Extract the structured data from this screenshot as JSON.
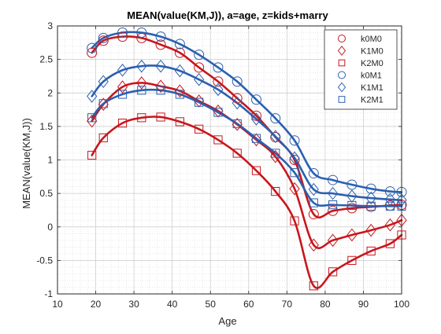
{
  "chart_data": {
    "type": "line",
    "title": "MEAN(value(KM,J)), a=age, z=kids+marry",
    "xlabel": "Age",
    "ylabel": "MEAN(value(KM,J))",
    "xlim": [
      10,
      100
    ],
    "ylim": [
      -1,
      3
    ],
    "xticks": [
      "10",
      "20",
      "30",
      "40",
      "50",
      "60",
      "70",
      "80",
      "90",
      "100"
    ],
    "yticks": [
      "-1",
      "-0.5",
      "0",
      "0.5",
      "1",
      "1.5",
      "2",
      "2.5",
      "3"
    ],
    "grid": true,
    "minor_grid": true,
    "legend_position": "top-right",
    "marker_x": [
      19,
      22,
      27,
      32,
      37,
      42,
      47,
      52,
      57,
      62,
      67,
      72,
      77,
      82,
      87,
      92,
      97,
      100
    ],
    "colors": {
      "red": "#c8161d",
      "blue": "#2a60b0"
    },
    "series": [
      {
        "name": "k0M0",
        "color": "#c8161d",
        "marker": "circle",
        "values": [
          2.6,
          2.78,
          2.84,
          2.82,
          2.72,
          2.6,
          2.38,
          2.17,
          1.92,
          1.66,
          1.34,
          1.0,
          0.19,
          0.24,
          0.28,
          0.3,
          0.32,
          0.33
        ]
      },
      {
        "name": "K1M0",
        "color": "#c8161d",
        "marker": "diamond",
        "values": [
          1.58,
          1.83,
          2.09,
          2.15,
          2.1,
          2.03,
          1.88,
          1.73,
          1.53,
          1.3,
          1.05,
          0.57,
          -0.27,
          -0.2,
          -0.12,
          -0.05,
          0.03,
          0.1
        ]
      },
      {
        "name": "K2M0",
        "color": "#c8161d",
        "marker": "square",
        "values": [
          1.07,
          1.33,
          1.55,
          1.63,
          1.64,
          1.57,
          1.46,
          1.3,
          1.1,
          0.84,
          0.53,
          0.09,
          -0.88,
          -0.67,
          -0.5,
          -0.36,
          -0.25,
          -0.12
        ]
      },
      {
        "name": "k0M1",
        "color": "#2a60b0",
        "marker": "circle",
        "values": [
          2.67,
          2.82,
          2.9,
          2.9,
          2.84,
          2.73,
          2.57,
          2.38,
          2.17,
          1.9,
          1.62,
          1.29,
          0.8,
          0.7,
          0.63,
          0.57,
          0.53,
          0.52
        ]
      },
      {
        "name": "K1M1",
        "color": "#2a60b0",
        "marker": "diamond",
        "values": [
          1.95,
          2.17,
          2.34,
          2.4,
          2.4,
          2.33,
          2.2,
          2.05,
          1.85,
          1.61,
          1.35,
          1.03,
          0.56,
          0.5,
          0.46,
          0.43,
          0.41,
          0.4
        ]
      },
      {
        "name": "K2M1",
        "color": "#2a60b0",
        "marker": "square",
        "values": [
          1.63,
          1.84,
          1.98,
          2.04,
          2.04,
          1.98,
          1.86,
          1.71,
          1.54,
          1.32,
          1.1,
          0.81,
          0.36,
          0.33,
          0.32,
          0.31,
          0.31,
          0.31
        ]
      }
    ]
  }
}
